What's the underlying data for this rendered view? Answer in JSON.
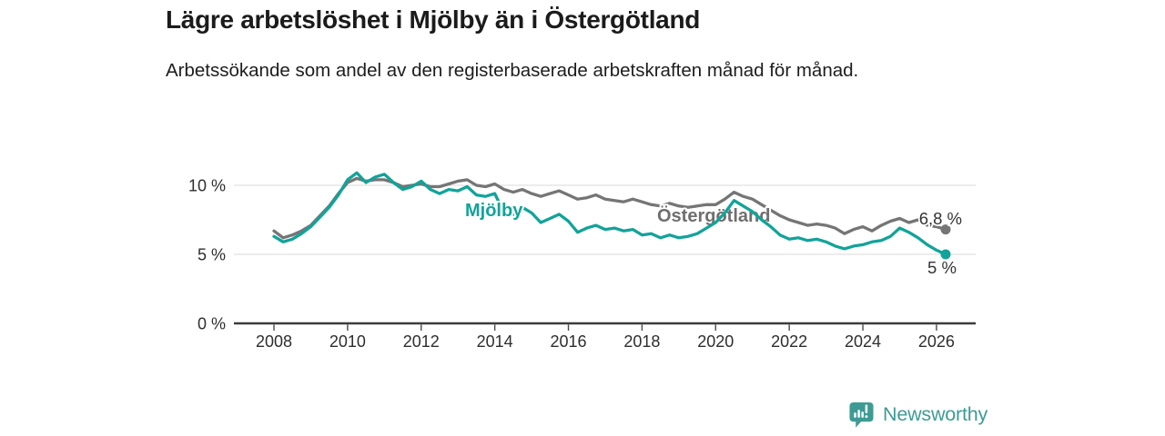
{
  "header": {
    "title": "Lägre arbetslöshet i Mjölby än i Östergötland",
    "subtitle": "Arbetssökande som andel av den registerbaserade arbetskraften månad för månad."
  },
  "chart_data": {
    "type": "line",
    "title": "Lägre arbetslöshet i Mjölby än i Östergötland",
    "subtitle": "Arbetssökande som andel av den registerbaserade arbetskraften månad för månad.",
    "unit": "%",
    "x_start": 2008,
    "x_step": 0.25,
    "x_axis": {
      "ticks": [
        2008,
        2010,
        2012,
        2014,
        2016,
        2018,
        2020,
        2022,
        2024,
        2026
      ],
      "range": [
        2006.9,
        2027.1
      ]
    },
    "y_axis": {
      "ticks": [
        {
          "value": 0,
          "label": "0 %"
        },
        {
          "value": 5,
          "label": "5 %"
        },
        {
          "value": 10,
          "label": "10 %"
        }
      ],
      "range": [
        0,
        11.5
      ],
      "gridlines": true
    },
    "legend_position": "inline-labels",
    "series": [
      {
        "name": "Östergötland",
        "color": "#757575",
        "label_color": "#6F6F6F",
        "end_label": "6,8 %",
        "end_value": 6.8,
        "values": [
          6.7,
          6.2,
          6.4,
          6.7,
          7.1,
          7.8,
          8.5,
          9.4,
          10.2,
          10.5,
          10.3,
          10.4,
          10.4,
          10.2,
          9.9,
          10.0,
          10.1,
          9.9,
          9.9,
          10.1,
          10.3,
          10.4,
          10.0,
          9.9,
          10.1,
          9.7,
          9.5,
          9.7,
          9.4,
          9.2,
          9.4,
          9.6,
          9.3,
          9.0,
          9.1,
          9.3,
          9.0,
          8.9,
          8.8,
          9.0,
          8.8,
          8.6,
          8.5,
          8.7,
          8.5,
          8.4,
          8.5,
          8.6,
          8.6,
          9.0,
          9.5,
          9.2,
          9.0,
          8.6,
          8.2,
          7.8,
          7.5,
          7.3,
          7.1,
          7.2,
          7.1,
          6.9,
          6.5,
          6.8,
          7.0,
          6.7,
          7.1,
          7.4,
          7.6,
          7.3,
          7.5,
          7.1,
          7.0,
          6.8
        ]
      },
      {
        "name": "Mjölby",
        "color": "#12A39A",
        "label_color": "#12A39A",
        "end_label": "5 %",
        "end_value": 5.0,
        "values": [
          6.3,
          5.9,
          6.1,
          6.5,
          7.0,
          7.7,
          8.4,
          9.3,
          10.4,
          10.9,
          10.2,
          10.6,
          10.8,
          10.2,
          9.7,
          9.9,
          10.3,
          9.7,
          9.4,
          9.7,
          9.6,
          9.9,
          9.3,
          9.2,
          9.4,
          8.0,
          7.9,
          8.4,
          8.0,
          7.3,
          7.6,
          7.9,
          7.4,
          6.6,
          6.9,
          7.1,
          6.8,
          6.9,
          6.7,
          6.8,
          6.4,
          6.5,
          6.2,
          6.4,
          6.2,
          6.3,
          6.5,
          6.9,
          7.3,
          8.0,
          8.9,
          8.5,
          8.1,
          7.5,
          7.0,
          6.4,
          6.1,
          6.2,
          6.0,
          6.1,
          5.9,
          5.6,
          5.4,
          5.6,
          5.7,
          5.9,
          6.0,
          6.3,
          6.9,
          6.6,
          6.2,
          5.7,
          5.3,
          5.0
        ]
      }
    ]
  },
  "footer": {
    "brand": "Newsworthy",
    "brand_color": "#3E9B94",
    "logo_icon": "bar-chart-speech-bubble"
  },
  "colors": {
    "teal": "#12A39A",
    "gray": "#757575",
    "grid": "#E1E1E1",
    "axis": "#3B3B3B",
    "text": "#1C1C1C"
  }
}
